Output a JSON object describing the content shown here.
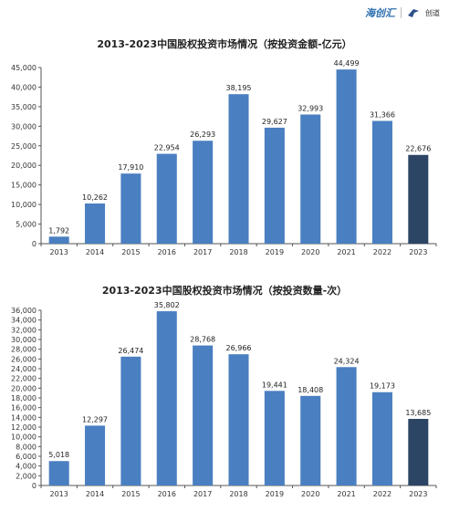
{
  "brand": {
    "left": "海创汇",
    "right": "创道"
  },
  "chart_data": [
    {
      "type": "bar",
      "title": "2013-2023中国股权投资市场情况（按投资金额-亿元）",
      "categories": [
        "2013",
        "2014",
        "2015",
        "2016",
        "2017",
        "2018",
        "2019",
        "2020",
        "2021",
        "2022",
        "2023"
      ],
      "values": [
        1792,
        10262,
        17910,
        22954,
        26293,
        38195,
        29627,
        32993,
        44499,
        31366,
        22676
      ],
      "value_labels": [
        "1,792",
        "10,262",
        "17,910",
        "22,954",
        "26,293",
        "38,195",
        "29,627",
        "32,993",
        "44,499",
        "31,366",
        "22,676"
      ],
      "ylim": [
        0,
        45000
      ],
      "yticks": [
        0,
        5000,
        10000,
        15000,
        20000,
        25000,
        30000,
        35000,
        40000,
        45000
      ],
      "ytick_labels": [
        "0",
        "5,000",
        "10,000",
        "15,000",
        "20,000",
        "25,000",
        "30,000",
        "35,000",
        "40,000",
        "45,000"
      ],
      "colors": {
        "bar": "#4a7fc1",
        "highlight": "#2d4565"
      },
      "highlight_index": 10,
      "grid": false
    },
    {
      "type": "bar",
      "title": "2013-2023中国股权投资市场情况（按投资数量-次）",
      "categories": [
        "2013",
        "2014",
        "2015",
        "2016",
        "2017",
        "2018",
        "2019",
        "2020",
        "2021",
        "2022",
        "2023"
      ],
      "values": [
        5018,
        12297,
        26474,
        35802,
        28768,
        26966,
        19441,
        18408,
        24324,
        19173,
        13685
      ],
      "value_labels": [
        "5,018",
        "12,297",
        "26,474",
        "35,802",
        "28,768",
        "26,966",
        "19,441",
        "18,408",
        "24,324",
        "19,173",
        "13,685"
      ],
      "ylim": [
        0,
        36000
      ],
      "yticks": [
        0,
        2000,
        4000,
        6000,
        8000,
        10000,
        12000,
        14000,
        16000,
        18000,
        20000,
        22000,
        24000,
        26000,
        28000,
        30000,
        32000,
        34000,
        36000
      ],
      "ytick_labels": [
        "0",
        "2,000",
        "4,000",
        "6,000",
        "8,000",
        "10,000",
        "12,000",
        "14,000",
        "16,000",
        "18,000",
        "20,000",
        "22,000",
        "24,000",
        "26,000",
        "28,000",
        "30,000",
        "32,000",
        "34,000",
        "36,000"
      ],
      "colors": {
        "bar": "#4a7fc1",
        "highlight": "#2d4565"
      },
      "highlight_index": 10,
      "grid": false
    }
  ]
}
